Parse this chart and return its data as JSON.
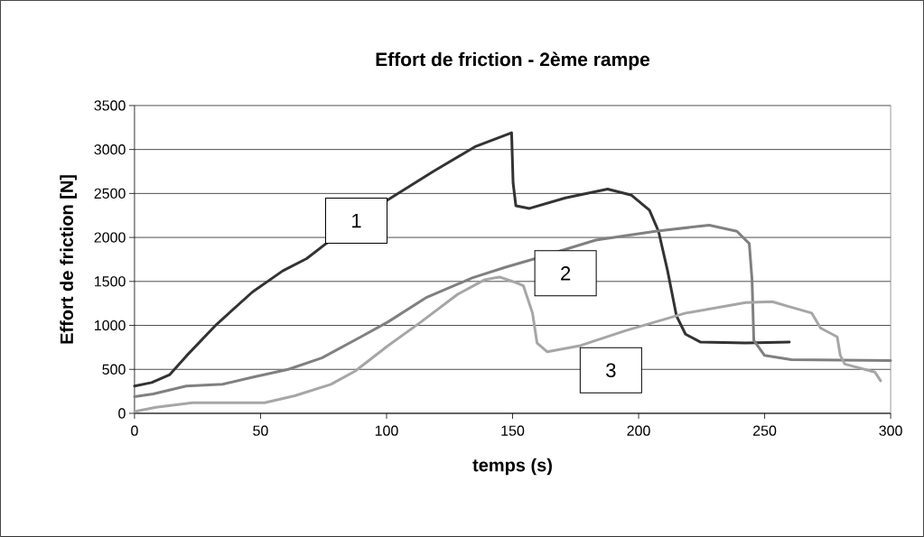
{
  "chart_data": {
    "type": "line",
    "title": "Effort de friction - 2ème rampe",
    "xlabel": "temps (s)",
    "ylabel": "Effort de friction [N]",
    "xlim": [
      0,
      300
    ],
    "xticks": [
      0,
      50,
      100,
      150,
      200,
      250,
      300
    ],
    "ylim": [
      0,
      3500
    ],
    "yticks": [
      0,
      500,
      1000,
      1500,
      2000,
      2500,
      3000,
      3500
    ],
    "grid": "y",
    "marker": "none",
    "line_style": "solid",
    "series": [
      {
        "color": "#333333",
        "x": [
          0,
          6.8,
          14,
          20.5,
          32.5,
          46.8,
          58.8,
          68.3,
          76,
          100.6,
          118.5,
          135,
          149.6,
          150.2,
          151.3,
          156.7,
          171,
          187.7,
          197.2,
          204.3,
          207.9,
          211.5,
          215,
          218.6,
          224.6,
          242.5,
          259.8
        ],
        "values": [
          310,
          350,
          440,
          650,
          1010,
          1380,
          1620,
          1760,
          1930,
          2430,
          2750,
          3030,
          3190,
          2620,
          2360,
          2330,
          2450,
          2550,
          2480,
          2310,
          2070,
          1620,
          1110,
          900,
          810,
          800,
          810
        ]
      },
      {
        "color": "#808080",
        "x": [
          0,
          7.4,
          20.5,
          34.9,
          46.8,
          61,
          74.3,
          89.8,
          100.6,
          116,
          134,
          147,
          159,
          183,
          206.7,
          228,
          239,
          243.9,
          245,
          245.7,
          249.9,
          260.6,
          300
        ],
        "values": [
          190,
          220,
          310,
          330,
          410,
          500,
          630,
          870,
          1040,
          1320,
          1540,
          1660,
          1760,
          1970,
          2070,
          2140,
          2070,
          1930,
          1520,
          830,
          660,
          610,
          600
        ]
      },
      {
        "color": "#a6a6a6",
        "x": [
          0,
          8.6,
          23,
          51.6,
          63.6,
          77.9,
          87.5,
          100.6,
          113.7,
          128,
          139,
          144.8,
          152,
          154.3,
          157.9,
          159.7,
          163.8,
          176.9,
          194.8,
          218.7,
          242.5,
          253,
          260.2,
          268.7,
          272.2,
          278.8,
          280,
          281.8,
          293.7,
          296
        ],
        "values": [
          20,
          70,
          120,
          120,
          200,
          330,
          480,
          770,
          1040,
          1350,
          1520,
          1550,
          1480,
          1450,
          1140,
          800,
          700,
          770,
          940,
          1140,
          1260,
          1270,
          1210,
          1140,
          970,
          870,
          660,
          560,
          470,
          370
        ]
      }
    ],
    "annotations": [
      {
        "text": "1",
        "x": 88,
        "y": 2190
      },
      "2",
      "3"
    ]
  }
}
